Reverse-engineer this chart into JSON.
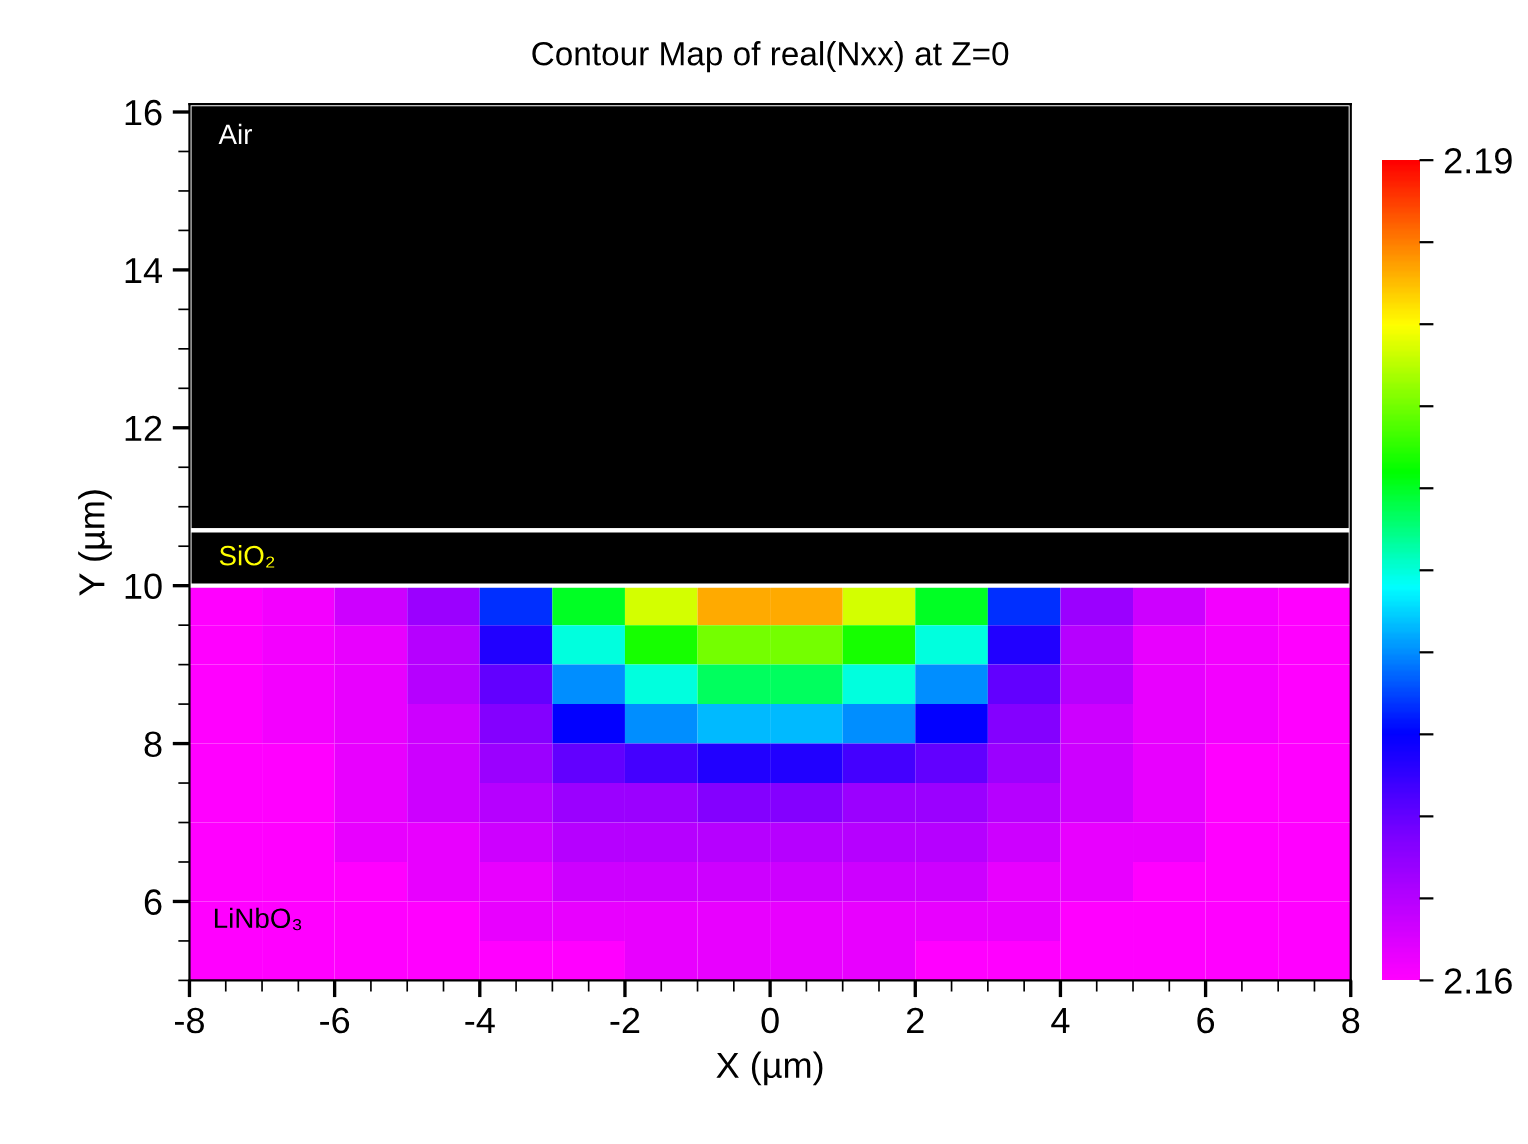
{
  "chart_data": {
    "type": "heatmap",
    "title": "Contour Map of real(Nxx) at Z=0",
    "xlabel": "X (µm)",
    "ylabel": "Y (µm)",
    "x": [
      -7.5,
      -6.5,
      -5.5,
      -4.5,
      -3.5,
      -2.5,
      -1.5,
      -0.5,
      0.5,
      1.5,
      2.5,
      3.5,
      4.5,
      5.5,
      6.5,
      7.5
    ],
    "y": [
      9.75,
      9.25,
      8.75,
      8.25,
      7.75,
      7.25,
      6.75,
      6.25,
      5.75,
      5.25
    ],
    "cells": [
      [
        2.16,
        2.1605,
        2.162,
        2.164,
        2.17,
        2.178,
        2.183,
        2.186,
        2.186,
        2.183,
        2.178,
        2.17,
        2.164,
        2.162,
        2.1605,
        2.16
      ],
      [
        2.16,
        2.1605,
        2.161,
        2.163,
        2.168,
        2.175,
        2.179,
        2.181,
        2.181,
        2.179,
        2.175,
        2.168,
        2.163,
        2.161,
        2.1605,
        2.16
      ],
      [
        2.16,
        2.1605,
        2.161,
        2.163,
        2.166,
        2.172,
        2.175,
        2.177,
        2.177,
        2.175,
        2.172,
        2.166,
        2.163,
        2.161,
        2.1605,
        2.16
      ],
      [
        2.16,
        2.1605,
        2.161,
        2.162,
        2.165,
        2.169,
        2.172,
        2.173,
        2.173,
        2.172,
        2.169,
        2.165,
        2.162,
        2.161,
        2.1605,
        2.16
      ],
      [
        2.16,
        2.16,
        2.161,
        2.162,
        2.164,
        2.166,
        2.167,
        2.168,
        2.168,
        2.167,
        2.166,
        2.164,
        2.162,
        2.161,
        2.16,
        2.16
      ],
      [
        2.16,
        2.16,
        2.161,
        2.162,
        2.163,
        2.164,
        2.164,
        2.165,
        2.165,
        2.164,
        2.164,
        2.163,
        2.162,
        2.161,
        2.16,
        2.16
      ],
      [
        2.16,
        2.16,
        2.161,
        2.161,
        2.162,
        2.163,
        2.163,
        2.163,
        2.163,
        2.163,
        2.163,
        2.162,
        2.161,
        2.161,
        2.16,
        2.16
      ],
      [
        2.16,
        2.16,
        2.16,
        2.161,
        2.161,
        2.162,
        2.162,
        2.162,
        2.162,
        2.162,
        2.162,
        2.161,
        2.161,
        2.16,
        2.16,
        2.16
      ],
      [
        2.16,
        2.16,
        2.16,
        2.16,
        2.161,
        2.161,
        2.161,
        2.161,
        2.161,
        2.161,
        2.161,
        2.161,
        2.16,
        2.16,
        2.16,
        2.16
      ],
      [
        2.16,
        2.16,
        2.16,
        2.16,
        2.16,
        2.16,
        2.161,
        2.161,
        2.161,
        2.161,
        2.16,
        2.16,
        2.16,
        2.16,
        2.16,
        2.16
      ]
    ],
    "clim": [
      2.16,
      2.19
    ],
    "cticks": [
      2.16,
      {
        "value": 2.163,
        "label": null
      },
      {
        "value": 2.166,
        "label": null
      },
      {
        "value": 2.169,
        "label": null
      },
      {
        "value": 2.172,
        "label": null
      },
      {
        "value": 2.175,
        "label": null
      },
      {
        "value": 2.178,
        "label": null
      },
      {
        "value": 2.181,
        "label": null
      },
      {
        "value": 2.184,
        "label": null
      },
      {
        "value": 2.187,
        "label": null
      },
      2.19
    ],
    "xlim": [
      -8,
      8
    ],
    "ylim": [
      5,
      16.1
    ],
    "xticks": [
      -8,
      -6,
      -4,
      -2,
      0,
      2,
      4,
      6,
      8
    ],
    "yticks": [
      6,
      8,
      10,
      12,
      14,
      16
    ],
    "bands": [
      {
        "axis": "y",
        "from": 10.7,
        "to": 16.1,
        "label": "Air",
        "color": "#000000"
      },
      {
        "axis": "y",
        "from": 10,
        "to": 10.7,
        "label": "SiO₂",
        "color": "#000000"
      }
    ],
    "annotations": [
      "LiNbO₃"
    ],
    "grid": false
  }
}
